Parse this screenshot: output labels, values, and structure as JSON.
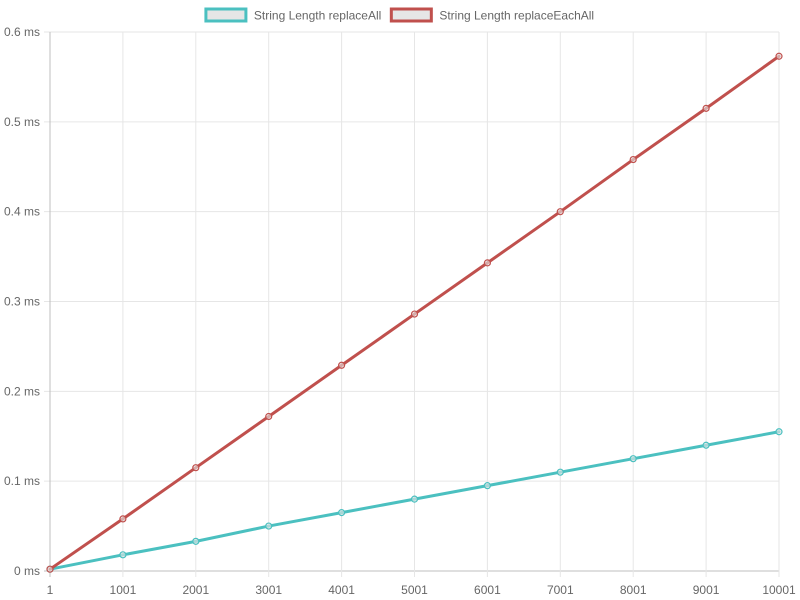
{
  "chart_data": {
    "type": "line",
    "categories": [
      "1",
      "1001",
      "2001",
      "3001",
      "4001",
      "5001",
      "6001",
      "7001",
      "8001",
      "9001",
      "10001"
    ],
    "series": [
      {
        "name": "String Length replaceAll",
        "color": "#4bc0c0",
        "values": [
          0.002,
          0.018,
          0.033,
          0.05,
          0.065,
          0.08,
          0.095,
          0.11,
          0.125,
          0.14,
          0.155
        ]
      },
      {
        "name": "String Length replaceEachAll",
        "color": "#c0504d",
        "values": [
          0.002,
          0.058,
          0.115,
          0.172,
          0.229,
          0.286,
          0.343,
          0.4,
          0.458,
          0.515,
          0.573
        ]
      }
    ],
    "y_ticks": [
      "0 ms",
      "0.1 ms",
      "0.2 ms",
      "0.3 ms",
      "0.4 ms",
      "0.5 ms",
      "0.6 ms"
    ],
    "ylim": [
      0,
      0.6
    ],
    "grid": true,
    "legend_position": "top"
  }
}
